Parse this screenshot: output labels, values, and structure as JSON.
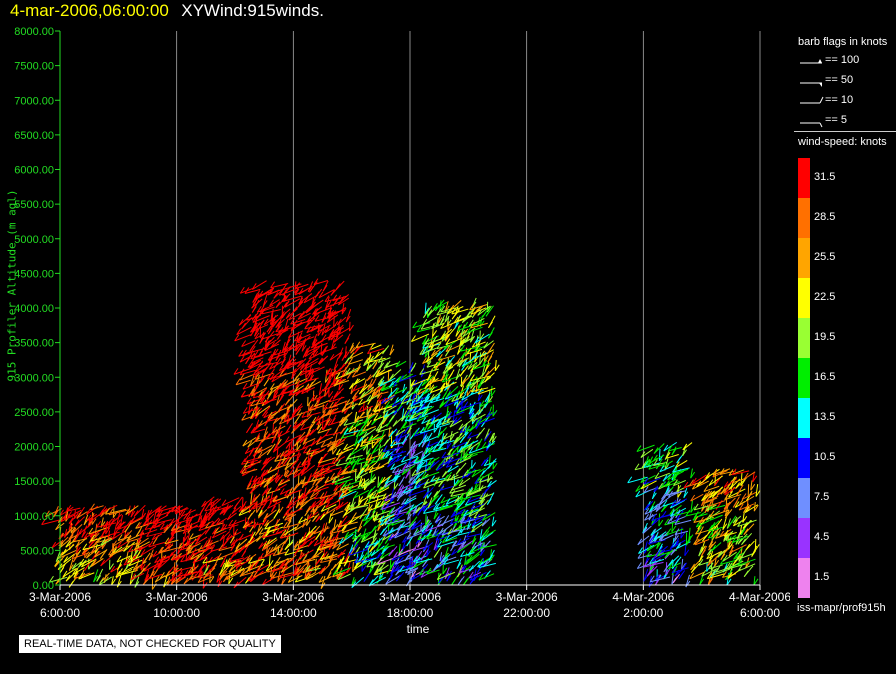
{
  "title": {
    "timestamp": "4-mar-2006,06:00:00",
    "main": "XYWind:915winds."
  },
  "notice": "REAL-TIME DATA, NOT CHECKED FOR QUALITY",
  "legend": {
    "barb_title": "barb flags in knots",
    "barbs": [
      {
        "label": "== 100",
        "icon": "barb-100-icon"
      },
      {
        "label": "== 50",
        "icon": "barb-50-icon"
      },
      {
        "label": "== 10",
        "icon": "barb-10-icon"
      },
      {
        "label": "== 5",
        "icon": "barb-5-icon"
      }
    ],
    "speed_title": "wind-speed: knots",
    "source": "iss-mapr/prof915h"
  },
  "colorbar": [
    {
      "label": "31.5",
      "color": "#ff0000"
    },
    {
      "label": "28.5",
      "color": "#ff7000"
    },
    {
      "label": "25.5",
      "color": "#ffa500"
    },
    {
      "label": "22.5",
      "color": "#ffff00"
    },
    {
      "label": "19.5",
      "color": "#99ff33"
    },
    {
      "label": "16.5",
      "color": "#00ee00"
    },
    {
      "label": "13.5",
      "color": "#00ffff"
    },
    {
      "label": "10.5",
      "color": "#0000ff"
    },
    {
      "label": "7.5",
      "color": "#6f8fff"
    },
    {
      "label": "4.5",
      "color": "#9933ff"
    },
    {
      "label": "1.5",
      "color": "#ee82ee"
    }
  ],
  "chart_data": {
    "type": "scatter",
    "xlabel": "time",
    "ylabel": "915 Profiler Altitude (m agl)",
    "ylim": [
      0,
      8000
    ],
    "xlim_hours": [
      6,
      30
    ],
    "y_ticks": [
      "0.00",
      "500.00",
      "1000.00",
      "1500.00",
      "2000.00",
      "2500.00",
      "3000.00",
      "3500.00",
      "4000.00",
      "4500.00",
      "5000.00",
      "5500.00",
      "6000.00",
      "6500.00",
      "7000.00",
      "7500.00",
      "8000.00"
    ],
    "x_ticks": [
      {
        "hour": 6,
        "line1": "3-Mar-2006",
        "line2": "6:00:00"
      },
      {
        "hour": 10,
        "line1": "3-Mar-2006",
        "line2": "10:00:00"
      },
      {
        "hour": 14,
        "line1": "3-Mar-2006",
        "line2": "14:00:00"
      },
      {
        "hour": 18,
        "line1": "3-Mar-2006",
        "line2": "18:00:00"
      },
      {
        "hour": 22,
        "line1": "3-Mar-2006",
        "line2": "22:00:00"
      },
      {
        "hour": 26,
        "line1": "4-Mar-2006",
        "line2": "2:00:00"
      },
      {
        "hour": 30,
        "line1": "4-Mar-2006",
        "line2": "6:00:00"
      }
    ],
    "grid": "vertical",
    "series_approx": [
      {
        "t": [
          6.0,
          8.9
        ],
        "top_m": 1100,
        "speed_kt": 26
      },
      {
        "t": [
          8.9,
          11.0
        ],
        "top_m": 1200,
        "speed_kt": 31
      },
      {
        "t": [
          11.0,
          12.6
        ],
        "top_m": 1300,
        "speed_kt": 31
      },
      {
        "t": [
          12.6,
          16.0
        ],
        "top_m": 4400,
        "speed_kt": 31
      },
      {
        "t": [
          16.0,
          17.5
        ],
        "top_m": 3500,
        "speed_kt": 20
      },
      {
        "t": [
          17.5,
          18.6
        ],
        "top_m": 3200,
        "speed_kt": 10
      },
      {
        "t": [
          18.6,
          21.0
        ],
        "top_m": 4100,
        "speed_kt": 15
      },
      {
        "t": [
          26.2,
          27.7
        ],
        "top_m": 2100,
        "speed_kt": 12
      },
      {
        "t": [
          28.0,
          29.9
        ],
        "top_m": 1700,
        "speed_kt": 22
      }
    ]
  }
}
